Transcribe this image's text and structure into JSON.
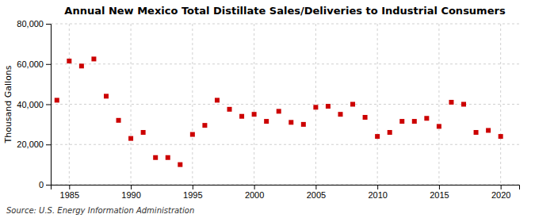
{
  "chart_data": {
    "type": "scatter",
    "title": "Annual New Mexico Total Distillate Sales/Deliveries to Industrial Consumers",
    "y_label": "Thousand Gallons",
    "source": "Source: U.S. Energy Information Administration",
    "x": [
      1984,
      1985,
      1986,
      1987,
      1988,
      1989,
      1990,
      1991,
      1992,
      1993,
      1994,
      1995,
      1996,
      1997,
      1998,
      1999,
      2000,
      2001,
      2002,
      2003,
      2004,
      2005,
      2006,
      2007,
      2008,
      2009,
      2010,
      2011,
      2012,
      2013,
      2014,
      2015,
      2016,
      2017,
      2018,
      2019,
      2020
    ],
    "values": [
      42000,
      61500,
      59000,
      62500,
      44000,
      32000,
      23000,
      26000,
      13500,
      13500,
      10000,
      25000,
      29500,
      42000,
      37500,
      34000,
      35000,
      31500,
      36500,
      31000,
      30000,
      38500,
      39000,
      35000,
      40000,
      33500,
      24000,
      26000,
      31500,
      31500,
      33000,
      29000,
      41000,
      40000,
      26000,
      27000,
      24000
    ],
    "color": "#cc0000",
    "marker": "square",
    "xlim": [
      1983.5,
      2021.5
    ],
    "xticks": [
      1985,
      1990,
      1995,
      2000,
      2005,
      2010,
      2015,
      2020
    ],
    "ylim": [
      0,
      80000
    ],
    "yticks": [
      0,
      {
        "value": 20000,
        "label": "20,000"
      },
      {
        "value": 40000,
        "label": "40,000"
      },
      {
        "value": 60000,
        "label": "60,000"
      },
      {
        "value": 80000,
        "label": "80,000"
      }
    ],
    "grid": true
  }
}
